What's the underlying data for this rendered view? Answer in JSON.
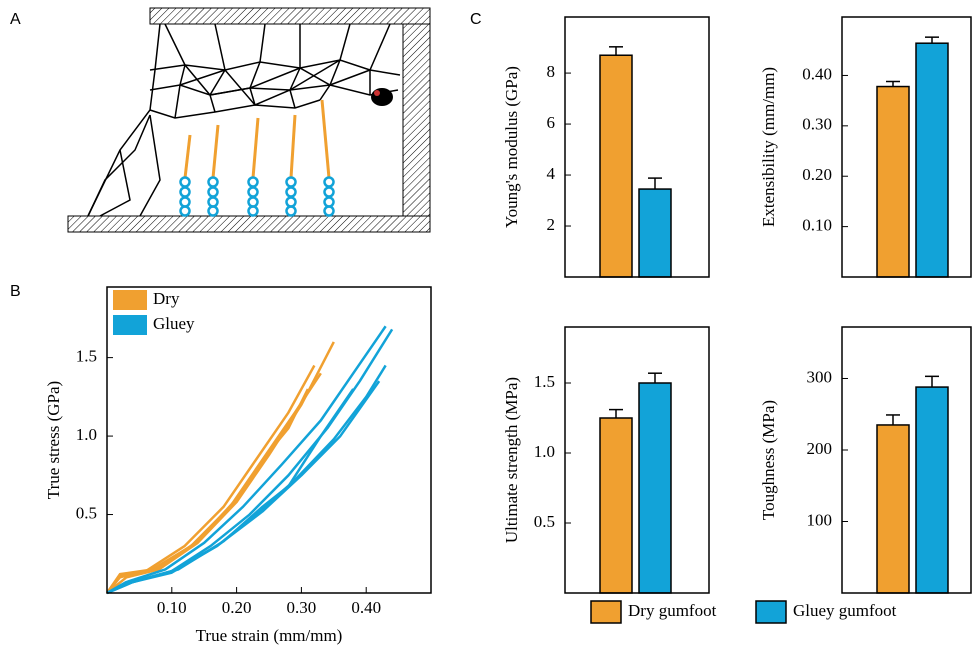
{
  "panel_labels": [
    "A",
    "B",
    "C"
  ],
  "legend": [
    {
      "name": "Dry gumfoot",
      "color": "#f0a030"
    },
    {
      "name": "Gluey gumfoot",
      "color": "#12a3d8"
    }
  ],
  "chart_data": [
    {
      "type": "line",
      "x_label": "True strain (mm/mm)",
      "y_label": "True stress (GPa)",
      "xlim": [
        0,
        0.5
      ],
      "xticks": [
        {
          "value": 0.1,
          "label": "0.10"
        },
        {
          "value": 0.2,
          "label": "0.20"
        },
        {
          "value": 0.3,
          "label": "0.30"
        },
        {
          "value": 0.4,
          "label": "0.40"
        }
      ],
      "ylim": [
        0,
        1.95
      ],
      "yticks": [
        0.5,
        {
          "value": 1,
          "label": "1.0"
        },
        1.5
      ],
      "series": [
        {
          "name": "Dry",
          "color": "#f0a030",
          "lines": [
            {
              "x": [
                0,
                0.02,
                0.06,
                0.12,
                0.18,
                0.23,
                0.28,
                0.32
              ],
              "values": [
                0,
                0.11,
                0.14,
                0.3,
                0.55,
                0.85,
                1.15,
                1.45
              ]
            },
            {
              "x": [
                0,
                0.02,
                0.07,
                0.13,
                0.19,
                0.24,
                0.29,
                0.33
              ],
              "values": [
                0,
                0.12,
                0.15,
                0.3,
                0.55,
                0.85,
                1.15,
                1.4
              ]
            },
            {
              "x": [
                0,
                0.03,
                0.08,
                0.14,
                0.2,
                0.25,
                0.3,
                0.35
              ],
              "values": [
                0,
                0.1,
                0.15,
                0.32,
                0.58,
                0.88,
                1.2,
                1.6
              ]
            },
            {
              "x": [
                0,
                0.02,
                0.08,
                0.14,
                0.2,
                0.25,
                0.28,
                0.31
              ],
              "values": [
                0,
                0.1,
                0.16,
                0.33,
                0.6,
                0.9,
                1.05,
                1.3
              ]
            }
          ]
        },
        {
          "name": "Gluey",
          "color": "#12a3d8",
          "lines": [
            {
              "x": [
                0,
                0.03,
                0.09,
                0.15,
                0.21,
                0.27,
                0.33,
                0.38,
                0.43
              ],
              "values": [
                0,
                0.07,
                0.15,
                0.32,
                0.55,
                0.82,
                1.1,
                1.4,
                1.7
              ]
            },
            {
              "x": [
                0,
                0.03,
                0.1,
                0.16,
                0.22,
                0.28,
                0.34,
                0.39,
                0.44
              ],
              "values": [
                0,
                0.06,
                0.14,
                0.3,
                0.5,
                0.75,
                1.05,
                1.35,
                1.68
              ]
            },
            {
              "x": [
                0,
                0.03,
                0.1,
                0.17,
                0.23,
                0.29,
                0.35,
                0.4,
                0.43
              ],
              "values": [
                0,
                0.06,
                0.13,
                0.3,
                0.5,
                0.72,
                0.98,
                1.25,
                1.45
              ]
            },
            {
              "x": [
                0,
                0.04,
                0.1,
                0.17,
                0.24,
                0.3,
                0.36,
                0.42
              ],
              "values": [
                0,
                0.07,
                0.14,
                0.3,
                0.52,
                0.75,
                1.0,
                1.35
              ]
            },
            {
              "x": [
                0,
                0.04,
                0.11,
                0.18,
                0.24,
                0.28,
                0.33,
                0.38
              ],
              "values": [
                0,
                0.07,
                0.15,
                0.33,
                0.55,
                0.68,
                1.0,
                1.3
              ]
            }
          ]
        }
      ]
    },
    {
      "type": "bar",
      "y_label": "Young's modulus (GPa)",
      "ylim": [
        0,
        10.2
      ],
      "yticks": [
        2,
        4,
        6,
        8
      ],
      "values": [
        8.7,
        3.45
      ],
      "errors": [
        0.33,
        0.43
      ]
    },
    {
      "type": "bar",
      "y_label": "Extensibility (mm/mm)",
      "ylim": [
        0,
        0.516
      ],
      "yticks": [
        {
          "value": 0.1,
          "label": "0.10"
        },
        {
          "value": 0.2,
          "label": "0.20"
        },
        {
          "value": 0.3,
          "label": "0.30"
        },
        {
          "value": 0.4,
          "label": "0.40"
        }
      ],
      "values": [
        0.378,
        0.464
      ],
      "errors": [
        0.01,
        0.012
      ]
    },
    {
      "type": "bar",
      "y_label": "Ultimate strength (MPa)",
      "ylim": [
        0,
        1.9
      ],
      "yticks": [
        0.5,
        {
          "value": 1,
          "label": "1.0"
        },
        1.5
      ],
      "values": [
        1.25,
        1.5
      ],
      "errors": [
        0.06,
        0.07
      ]
    },
    {
      "type": "bar",
      "y_label": "Toughness (MPa)",
      "ylim": [
        0,
        372
      ],
      "yticks": [
        100,
        200,
        300
      ],
      "values": [
        235,
        288
      ],
      "errors": [
        14,
        15
      ]
    }
  ]
}
